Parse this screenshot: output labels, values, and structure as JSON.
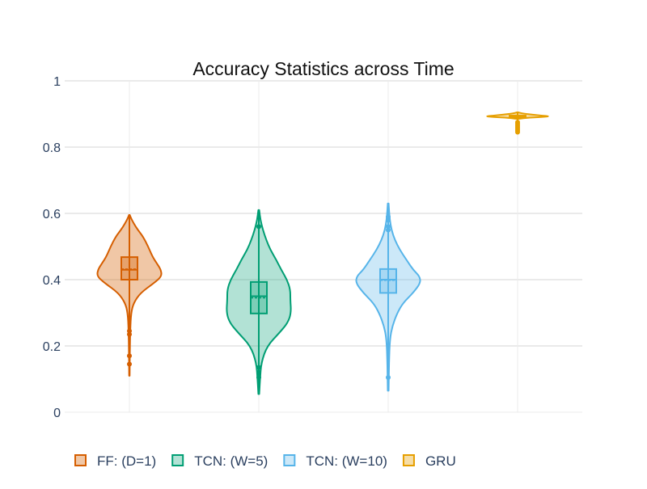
{
  "chart_data": {
    "type": "violin",
    "title": "Accuracy Statistics across Time",
    "xlabel": "",
    "ylabel": "",
    "ylim": [
      0,
      1
    ],
    "yticks": [
      0,
      0.2,
      0.4,
      0.6,
      0.8,
      1
    ],
    "ytick_labels": [
      "0",
      "0.2",
      "0.4",
      "0.6",
      "0.8",
      "1"
    ],
    "grid": true,
    "legend_position": "bottom",
    "series": [
      {
        "name": "FF: (D=1)",
        "color": "#d55e00",
        "fill": "rgba(213,94,0,0.35)",
        "min": 0.11,
        "max": 0.595,
        "q1": 0.4,
        "median": 0.43,
        "mean": 0.432,
        "q3": 0.468,
        "density": [
          [
            0.11,
            0.3
          ],
          [
            0.18,
            0.5
          ],
          [
            0.25,
            1.0
          ],
          [
            0.3,
            2
          ],
          [
            0.33,
            5
          ],
          [
            0.36,
            13
          ],
          [
            0.39,
            29
          ],
          [
            0.41,
            38
          ],
          [
            0.43,
            37
          ],
          [
            0.45,
            32
          ],
          [
            0.47,
            27
          ],
          [
            0.5,
            22
          ],
          [
            0.53,
            16
          ],
          [
            0.55,
            10
          ],
          [
            0.57,
            5
          ],
          [
            0.585,
            2
          ],
          [
            0.595,
            0.5
          ]
        ],
        "outliers": [
          0.145,
          0.17,
          0.235,
          0.245
        ]
      },
      {
        "name": "TCN: (W=5)",
        "color": "#009e73",
        "fill": "rgba(0,158,115,0.30)",
        "min": 0.055,
        "max": 0.61,
        "q1": 0.298,
        "median": 0.35,
        "mean": 0.345,
        "q3": 0.393,
        "density": [
          [
            0.055,
            0.5
          ],
          [
            0.1,
            1.5
          ],
          [
            0.15,
            3
          ],
          [
            0.2,
            10
          ],
          [
            0.24,
            25
          ],
          [
            0.27,
            35
          ],
          [
            0.3,
            39
          ],
          [
            0.34,
            38
          ],
          [
            0.37,
            38
          ],
          [
            0.4,
            34
          ],
          [
            0.43,
            27
          ],
          [
            0.46,
            21
          ],
          [
            0.49,
            14
          ],
          [
            0.52,
            9
          ],
          [
            0.55,
            5
          ],
          [
            0.58,
            2
          ],
          [
            0.61,
            0.5
          ]
        ],
        "outliers": [
          0.105,
          0.12,
          0.135,
          0.56
        ]
      },
      {
        "name": "TCN: (W=10)",
        "color": "#56b4e9",
        "fill": "rgba(86,180,233,0.30)",
        "min": 0.065,
        "max": 0.63,
        "q1": 0.36,
        "median": 0.4,
        "mean": 0.398,
        "q3": 0.432,
        "density": [
          [
            0.065,
            0.5
          ],
          [
            0.15,
            1
          ],
          [
            0.22,
            2
          ],
          [
            0.26,
            5
          ],
          [
            0.3,
            11
          ],
          [
            0.33,
            18
          ],
          [
            0.36,
            30
          ],
          [
            0.39,
            39
          ],
          [
            0.41,
            38
          ],
          [
            0.43,
            30
          ],
          [
            0.46,
            22
          ],
          [
            0.49,
            14
          ],
          [
            0.52,
            8
          ],
          [
            0.55,
            4
          ],
          [
            0.58,
            2
          ],
          [
            0.61,
            1
          ],
          [
            0.63,
            0.5
          ]
        ],
        "outliers": [
          0.105,
          0.55,
          0.56,
          0.58,
          0.59
        ]
      },
      {
        "name": "GRU",
        "color": "#e69f00",
        "fill": "rgba(230,159,0,0.35)",
        "min": 0.845,
        "max": 0.905,
        "q1": 0.889,
        "median": 0.892,
        "mean": 0.892,
        "q3": 0.895,
        "density": [
          [
            0.885,
            0.5
          ],
          [
            0.888,
            10
          ],
          [
            0.891,
            30
          ],
          [
            0.893,
            39
          ],
          [
            0.895,
            30
          ],
          [
            0.898,
            18
          ],
          [
            0.901,
            8
          ],
          [
            0.903,
            3
          ],
          [
            0.905,
            0.5
          ]
        ],
        "outliers": [
          0.845,
          0.85,
          0.855,
          0.86,
          0.865,
          0.87,
          0.875
        ]
      }
    ]
  }
}
